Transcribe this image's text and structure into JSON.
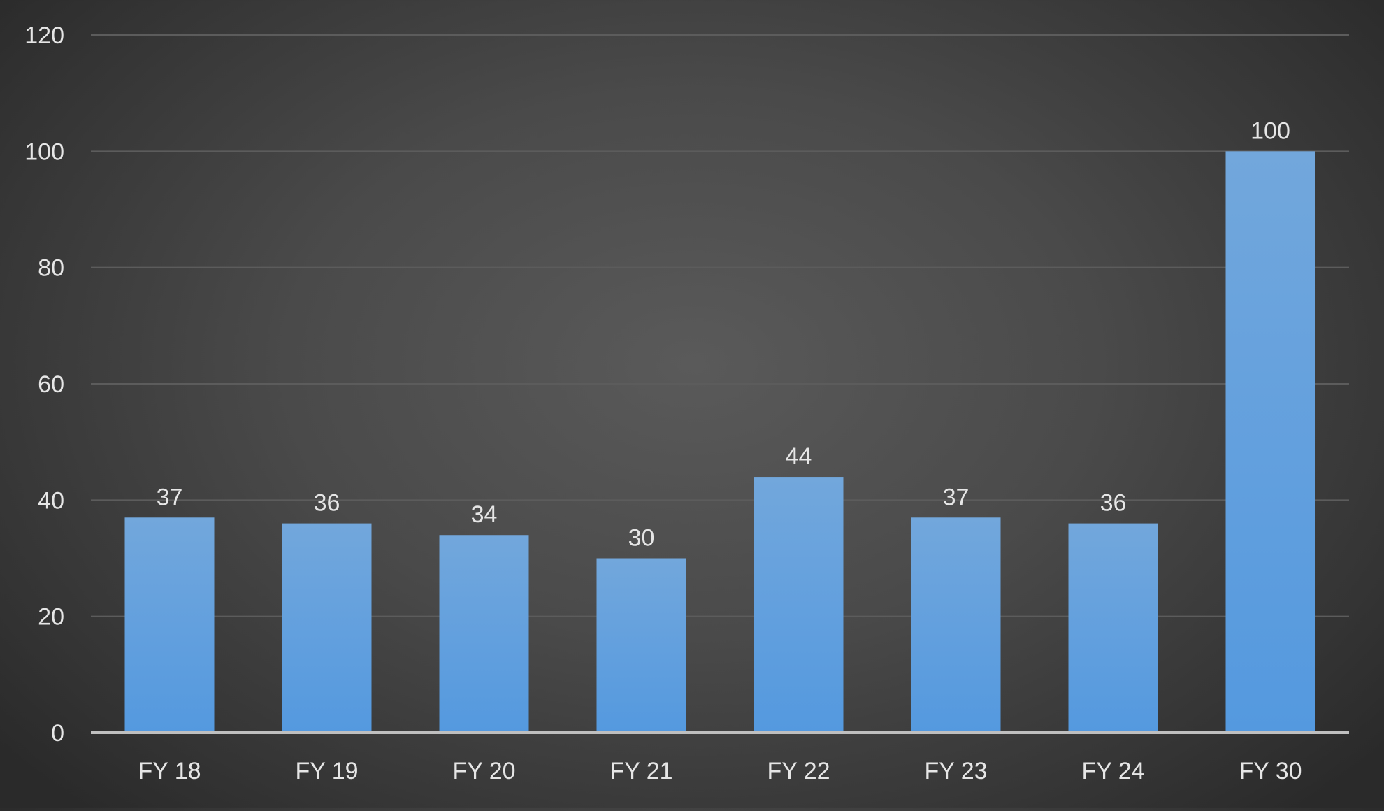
{
  "chart_data": {
    "type": "bar",
    "categories": [
      "FY 18",
      "FY 19",
      "FY 20",
      "FY 21",
      "FY 22",
      "FY 23",
      "FY 24",
      "FY 30"
    ],
    "values": [
      37,
      36,
      34,
      30,
      44,
      37,
      36,
      100
    ],
    "data_labels": [
      "37",
      "36",
      "34",
      "30",
      "44",
      "37",
      "36",
      "100"
    ],
    "y_ticks": [
      "0",
      "20",
      "40",
      "60",
      "80",
      "100",
      "120"
    ],
    "title": "",
    "xlabel": "",
    "ylabel": "",
    "ylim": [
      0,
      120
    ],
    "grid": true,
    "legend": "none",
    "colors": {
      "bar_top": "#72a7dc",
      "bar_bottom": "#5499df",
      "grid": "#5c5c5c",
      "axis": "#bfbfbf",
      "text": "#e6e6e6"
    }
  }
}
